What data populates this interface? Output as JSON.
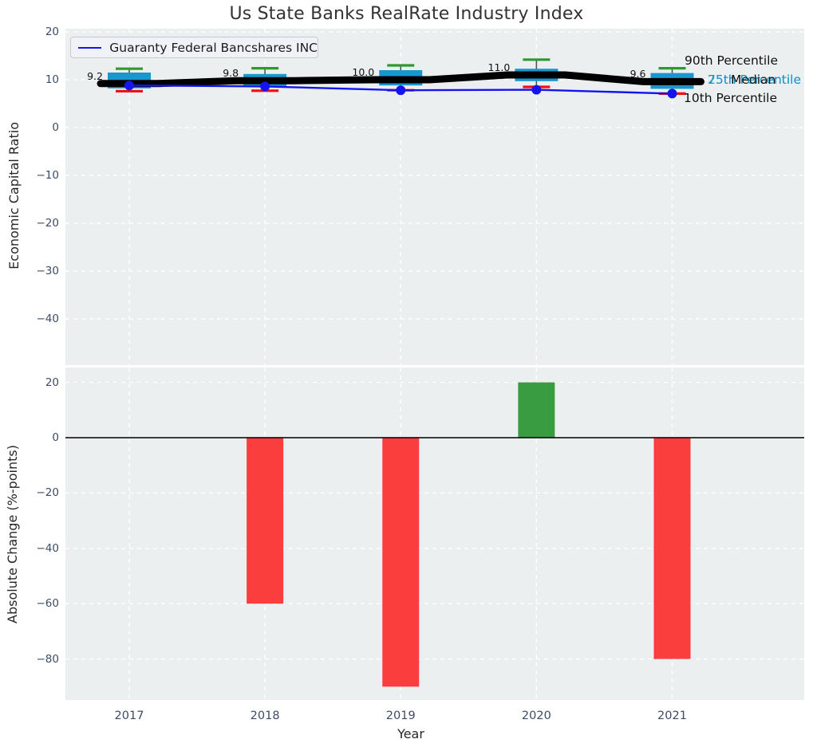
{
  "colors": {
    "plot_bg": "#ebeff0",
    "grid": "#ffffff",
    "box_fill": "#1a97cc",
    "p90_cap": "#2e992e",
    "p10_cap": "#ee1111",
    "median_line": "#000000",
    "company_line": "#1414f0",
    "bar_positive": "#3a9c41",
    "bar_negative": "#fa3e3e",
    "tick_label": "#3d4c63",
    "percentile_label": "#2096c8",
    "zero_line": "#000000"
  },
  "chart_data": [
    {
      "type": "boxplot+line",
      "title": "Us State Banks RealRate Industry Index",
      "ylabel": "Economic Capital Ratio",
      "categories": [
        "2017",
        "2018",
        "2019",
        "2020",
        "2021"
      ],
      "yticks": [
        20,
        10,
        0,
        -10,
        -20,
        -30,
        -40
      ],
      "ylim": [
        -50,
        20.7
      ],
      "grid": true,
      "legend_position": "upper left",
      "boxes": [
        {
          "p10": 7.6,
          "q1": 8.2,
          "median": 9.2,
          "q3": 11.5,
          "p90": 12.3
        },
        {
          "p10": 7.7,
          "q1": 8.5,
          "median": 9.8,
          "q3": 11.2,
          "p90": 12.4
        },
        {
          "p10": 7.8,
          "q1": 8.8,
          "median": 10.0,
          "q3": 12.0,
          "p90": 13.0
        },
        {
          "p10": 8.5,
          "q1": 9.7,
          "median": 11.0,
          "q3": 12.3,
          "p90": 14.2
        },
        {
          "p10": 7.1,
          "q1": 8.1,
          "median": 9.6,
          "q3": 11.4,
          "p90": 12.4
        }
      ],
      "median_labels": [
        "9.2",
        "9.8",
        "10.0",
        "11.0",
        "9.6"
      ],
      "series": [
        {
          "name": "Guaranty Federal Bancshares INC",
          "values": [
            8.8,
            8.6,
            7.8,
            7.9,
            7.1
          ]
        }
      ],
      "annotations": [
        {
          "text": "90th Percentile"
        },
        {
          "text": "75th Percentile"
        },
        {
          "text": "25th Percentile"
        },
        {
          "text": "Median"
        },
        {
          "text": "10th Percentile"
        }
      ]
    },
    {
      "type": "bar",
      "ylabel": "Absolute Change (%-points)",
      "xlabel": "Year",
      "categories": [
        "2017",
        "2018",
        "2019",
        "2020",
        "2021"
      ],
      "values": [
        null,
        -60,
        -90,
        20,
        -80
      ],
      "yticks": [
        20,
        0,
        -20,
        -40,
        -60,
        -80
      ],
      "ylim": [
        -95,
        25
      ],
      "grid": true,
      "zero_line": true
    }
  ]
}
